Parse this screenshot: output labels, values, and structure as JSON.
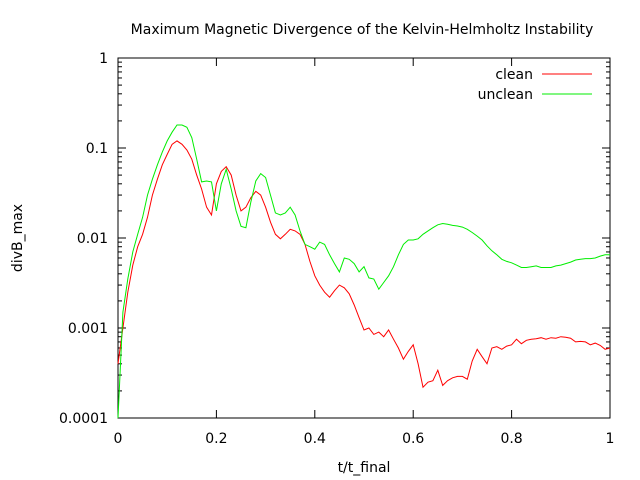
{
  "chart_data": {
    "type": "line",
    "title": "Maximum Magnetic Divergence of the Kelvin-Helmholtz Instability",
    "xlabel": "t/t_final",
    "ylabel": "divB_max",
    "xlim": [
      0,
      1
    ],
    "ylim": [
      0.0001,
      1
    ],
    "yscale": "log",
    "xticks": [
      0,
      0.2,
      0.4,
      0.6,
      0.8,
      1
    ],
    "xtick_labels": [
      "0",
      "0.2",
      "0.4",
      "0.6",
      "0.8",
      "1"
    ],
    "yticks": [
      0.0001,
      0.001,
      0.01,
      0.1,
      1
    ],
    "ytick_labels": [
      "0.0001",
      "0.001",
      "0.01",
      "0.1",
      "1"
    ],
    "grid": false,
    "legend_position": "top-right",
    "series": [
      {
        "name": "clean",
        "color": "#ff0000",
        "x": [
          0.0,
          0.01,
          0.02,
          0.03,
          0.04,
          0.05,
          0.06,
          0.07,
          0.08,
          0.09,
          0.1,
          0.11,
          0.12,
          0.13,
          0.14,
          0.15,
          0.16,
          0.17,
          0.18,
          0.19,
          0.2,
          0.21,
          0.22,
          0.23,
          0.24,
          0.25,
          0.26,
          0.27,
          0.28,
          0.29,
          0.3,
          0.31,
          0.32,
          0.33,
          0.34,
          0.35,
          0.36,
          0.37,
          0.38,
          0.39,
          0.4,
          0.41,
          0.42,
          0.43,
          0.44,
          0.45,
          0.46,
          0.47,
          0.48,
          0.49,
          0.5,
          0.51,
          0.52,
          0.53,
          0.54,
          0.55,
          0.56,
          0.57,
          0.58,
          0.59,
          0.6,
          0.61,
          0.62,
          0.63,
          0.64,
          0.65,
          0.66,
          0.67,
          0.68,
          0.69,
          0.7,
          0.71,
          0.72,
          0.73,
          0.74,
          0.75,
          0.76,
          0.77,
          0.78,
          0.79,
          0.8,
          0.81,
          0.82,
          0.83,
          0.84,
          0.85,
          0.86,
          0.87,
          0.88,
          0.89,
          0.9,
          0.91,
          0.92,
          0.93,
          0.94,
          0.95,
          0.96,
          0.97,
          0.98,
          0.99,
          1.0
        ],
        "y": [
          0.0004,
          0.001,
          0.0025,
          0.005,
          0.008,
          0.011,
          0.017,
          0.03,
          0.045,
          0.065,
          0.085,
          0.11,
          0.12,
          0.11,
          0.095,
          0.075,
          0.05,
          0.035,
          0.022,
          0.018,
          0.04,
          0.055,
          0.062,
          0.05,
          0.03,
          0.02,
          0.022,
          0.028,
          0.033,
          0.03,
          0.022,
          0.015,
          0.011,
          0.0098,
          0.011,
          0.0125,
          0.012,
          0.011,
          0.0085,
          0.0055,
          0.0038,
          0.003,
          0.0025,
          0.0022,
          0.0026,
          0.003,
          0.0028,
          0.0024,
          0.0018,
          0.0013,
          0.00095,
          0.001,
          0.00085,
          0.0009,
          0.0008,
          0.00095,
          0.00075,
          0.0006,
          0.00045,
          0.00055,
          0.00065,
          0.0004,
          0.00022,
          0.00025,
          0.00026,
          0.00034,
          0.00023,
          0.00026,
          0.00028,
          0.00029,
          0.00029,
          0.00027,
          0.00043,
          0.00058,
          0.00048,
          0.0004,
          0.0006,
          0.00062,
          0.00058,
          0.00063,
          0.00065,
          0.00075,
          0.00067,
          0.00073,
          0.00075,
          0.00076,
          0.00078,
          0.00075,
          0.00078,
          0.00077,
          0.0008,
          0.00079,
          0.00077,
          0.0007,
          0.00071,
          0.0007,
          0.00065,
          0.00068,
          0.00064,
          0.00058,
          0.0006
        ]
      },
      {
        "name": "unclean",
        "color": "#00ee00",
        "x": [
          0.0,
          0.01,
          0.02,
          0.03,
          0.04,
          0.05,
          0.06,
          0.07,
          0.08,
          0.09,
          0.1,
          0.11,
          0.12,
          0.13,
          0.14,
          0.15,
          0.16,
          0.17,
          0.18,
          0.19,
          0.2,
          0.21,
          0.22,
          0.23,
          0.24,
          0.25,
          0.26,
          0.27,
          0.28,
          0.29,
          0.3,
          0.31,
          0.32,
          0.33,
          0.34,
          0.35,
          0.36,
          0.37,
          0.38,
          0.39,
          0.4,
          0.41,
          0.42,
          0.43,
          0.44,
          0.45,
          0.46,
          0.47,
          0.48,
          0.49,
          0.5,
          0.51,
          0.52,
          0.53,
          0.54,
          0.55,
          0.56,
          0.57,
          0.58,
          0.59,
          0.6,
          0.61,
          0.62,
          0.63,
          0.64,
          0.65,
          0.66,
          0.67,
          0.68,
          0.69,
          0.7,
          0.71,
          0.72,
          0.73,
          0.74,
          0.75,
          0.76,
          0.77,
          0.78,
          0.79,
          0.8,
          0.81,
          0.82,
          0.83,
          0.84,
          0.85,
          0.86,
          0.87,
          0.88,
          0.89,
          0.9,
          0.91,
          0.92,
          0.93,
          0.94,
          0.95,
          0.96,
          0.97,
          0.98,
          0.99,
          1.0
        ],
        "y": [
          0.0001,
          0.0015,
          0.0035,
          0.007,
          0.011,
          0.017,
          0.03,
          0.045,
          0.065,
          0.09,
          0.12,
          0.15,
          0.18,
          0.18,
          0.17,
          0.13,
          0.075,
          0.042,
          0.043,
          0.042,
          0.02,
          0.04,
          0.058,
          0.035,
          0.02,
          0.0135,
          0.013,
          0.025,
          0.043,
          0.052,
          0.047,
          0.03,
          0.019,
          0.018,
          0.019,
          0.022,
          0.018,
          0.012,
          0.0085,
          0.008,
          0.0075,
          0.009,
          0.0085,
          0.0065,
          0.0052,
          0.0042,
          0.006,
          0.0058,
          0.0052,
          0.0042,
          0.0048,
          0.0036,
          0.0035,
          0.0027,
          0.0032,
          0.0038,
          0.0048,
          0.0065,
          0.0085,
          0.0095,
          0.0095,
          0.0098,
          0.011,
          0.012,
          0.013,
          0.014,
          0.0145,
          0.0142,
          0.0138,
          0.0136,
          0.0132,
          0.0125,
          0.0115,
          0.0105,
          0.0095,
          0.0082,
          0.0072,
          0.0065,
          0.0058,
          0.0055,
          0.0053,
          0.005,
          0.0047,
          0.0047,
          0.0048,
          0.0049,
          0.0047,
          0.0047,
          0.0047,
          0.0049,
          0.005,
          0.0052,
          0.0054,
          0.0057,
          0.0058,
          0.0059,
          0.0059,
          0.006,
          0.0063,
          0.0065,
          0.0065
        ]
      }
    ]
  }
}
